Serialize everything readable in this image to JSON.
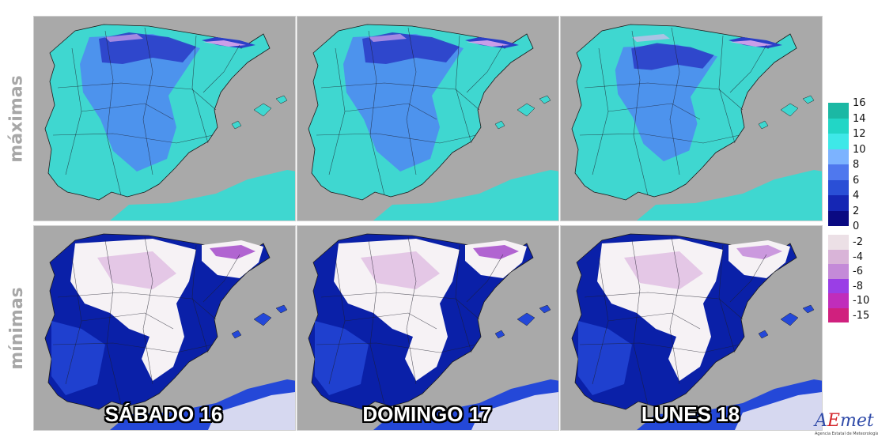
{
  "rows": [
    {
      "label": "máximas",
      "scale": "max"
    },
    {
      "label": "mínimas",
      "scale": "min"
    }
  ],
  "days": [
    "SÁBADO 16",
    "DOMINGO 17",
    "LUNES 18"
  ],
  "legend_max": {
    "labels": [
      "16",
      "14",
      "12",
      "10",
      "8",
      "6",
      "4",
      "2",
      "0"
    ],
    "colors": [
      "#1bb8a4",
      "#22d6c6",
      "#3ee8e8",
      "#7cb3ff",
      "#4f78ee",
      "#2a4fd6",
      "#1526b4",
      "#0a0a82"
    ]
  },
  "legend_min": {
    "labels": [
      "-2",
      "-4",
      "-6",
      "-8",
      "-10",
      "-15"
    ],
    "colors": [
      "#ece0e6",
      "#d9b4d8",
      "#c48ad8",
      "#9a3ee6",
      "#c02dbb",
      "#d0207e"
    ]
  },
  "colors": {
    "land_max": "#3fd7d0",
    "land_max_inner": "#4f8cf0",
    "land_max_cold": "#2c3fc8",
    "sea": "#a9a9a9",
    "land_min": "#0a20a8",
    "land_min_mid": "#2448d8",
    "land_min_cold": "#f6f2f5",
    "land_min_pink": "#d6a4d8",
    "land_min_purple": "#a040c8",
    "peaks": "#f2b6f0"
  },
  "logo": {
    "name_a": "A",
    "name_b": "E",
    "name_c": "met",
    "subtitle": "Agencia Estatal de Meteorología"
  }
}
